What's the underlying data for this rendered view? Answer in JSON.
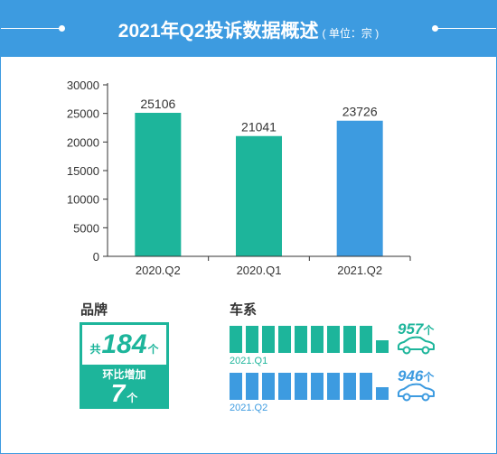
{
  "header": {
    "title": "2021年Q2投诉数据概述",
    "unit": "( 单位：宗 )"
  },
  "chart_data": {
    "type": "bar",
    "categories": [
      "2020.Q2",
      "2020.Q1",
      "2021.Q2"
    ],
    "values": [
      25106,
      21041,
      23726
    ],
    "value_labels": [
      "25106",
      "21041",
      "23726"
    ],
    "ylim": [
      0,
      30000
    ],
    "yticks": [
      0,
      5000,
      10000,
      15000,
      20000,
      25000,
      30000
    ],
    "ytick_labels": [
      "0",
      "5000",
      "10000",
      "15000",
      "20000",
      "25000",
      "30000"
    ],
    "bar_colors": [
      "#1db59b",
      "#1db59b",
      "#3d9be0"
    ],
    "grid": false
  },
  "brand": {
    "section_title": "品牌",
    "prefix": "共",
    "count": "184",
    "unit": "个",
    "mom_label": "环比增加",
    "mom_value": "7",
    "mom_unit": "个"
  },
  "series_section": {
    "section_title": "车系",
    "rows": [
      {
        "period": "2021.Q1",
        "count": "957",
        "unit": "个",
        "value": 957,
        "color": "#1db59b",
        "full_segments": 9,
        "partial_segments": 1
      },
      {
        "period": "2021.Q2",
        "count": "946",
        "unit": "个",
        "value": 946,
        "color": "#3d9be0",
        "full_segments": 9,
        "partial_segments": 1
      }
    ]
  },
  "colors": {
    "accent_blue": "#3d9be0",
    "accent_green": "#1db59b",
    "text": "#333333"
  },
  "icons": {
    "car": "car-icon"
  }
}
